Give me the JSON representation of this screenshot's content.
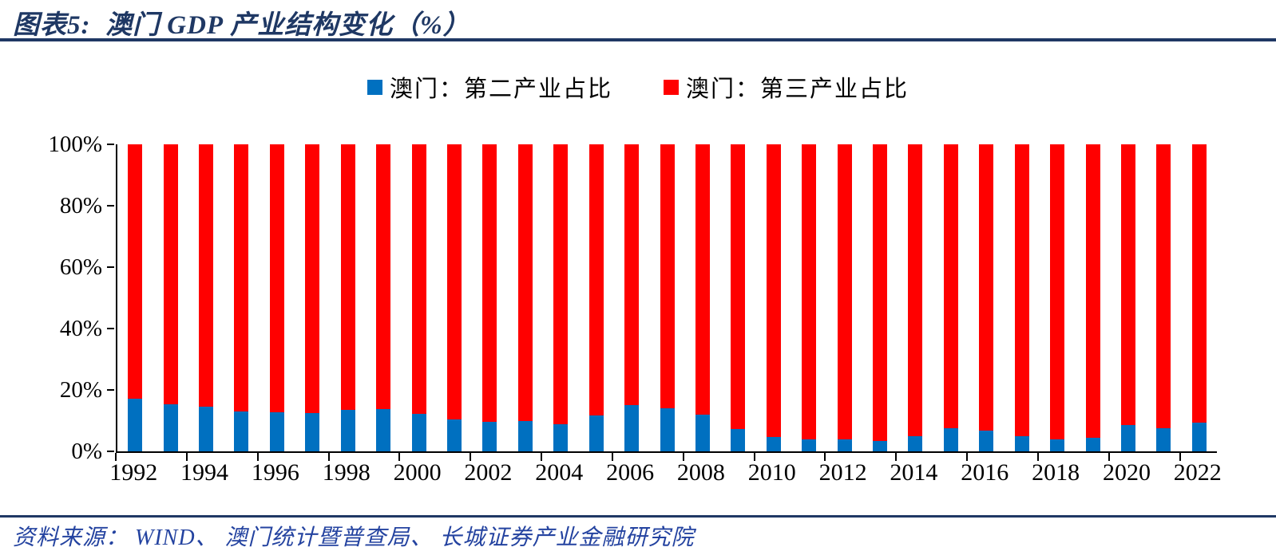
{
  "header": {
    "title": "图表5:  澳门 GDP 产业结构变化（%）"
  },
  "legend": {
    "items": [
      {
        "label": "澳门：第二产业占比",
        "color": "#0070C0"
      },
      {
        "label": "澳门：第三产业占比",
        "color": "#FF0000"
      }
    ]
  },
  "chart_data": {
    "type": "bar",
    "subtype": "stacked-100-percent",
    "title": "澳门 GDP 产业结构变化（%）",
    "categories": [
      1992,
      1993,
      1994,
      1995,
      1996,
      1997,
      1998,
      1999,
      2000,
      2001,
      2002,
      2003,
      2004,
      2005,
      2006,
      2007,
      2008,
      2009,
      2010,
      2011,
      2012,
      2013,
      2014,
      2015,
      2016,
      2017,
      2018,
      2019,
      2020,
      2021,
      2022
    ],
    "series": [
      {
        "name": "澳门：第二产业占比",
        "color": "#0070C0",
        "values": [
          17.2,
          15.3,
          14.5,
          13.1,
          12.7,
          12.5,
          13.5,
          13.9,
          12.2,
          10.5,
          9.6,
          9.9,
          8.9,
          11.6,
          15.0,
          14.1,
          11.9,
          7.3,
          4.8,
          3.9,
          4.0,
          3.5,
          4.9,
          7.5,
          6.7,
          4.9,
          3.9,
          4.3,
          8.5,
          7.6,
          9.4
        ]
      },
      {
        "name": "澳门：第三产业占比",
        "color": "#FF0000",
        "values": [
          82.8,
          84.7,
          85.5,
          86.9,
          87.3,
          87.5,
          86.5,
          86.1,
          87.8,
          89.5,
          90.4,
          90.1,
          91.1,
          88.4,
          85.0,
          85.9,
          88.1,
          92.7,
          95.2,
          96.1,
          96.0,
          96.5,
          95.1,
          92.5,
          93.3,
          95.1,
          96.1,
          95.7,
          91.5,
          92.4,
          90.6
        ]
      }
    ],
    "ylim": [
      0,
      100
    ],
    "ytick_labels": [
      "0%",
      "20%",
      "40%",
      "60%",
      "80%",
      "100%"
    ],
    "xtick_labels": [
      "1992",
      "1994",
      "1996",
      "1998",
      "2000",
      "2002",
      "2004",
      "2006",
      "2008",
      "2010",
      "2012",
      "2014",
      "2016",
      "2018",
      "2020",
      "2022"
    ],
    "grid": false,
    "legend_position": "top",
    "axis_color": "#000000"
  },
  "footer": {
    "source": "资料来源： WIND、 澳门统计暨普查局、 长城证券产业金融研究院"
  }
}
